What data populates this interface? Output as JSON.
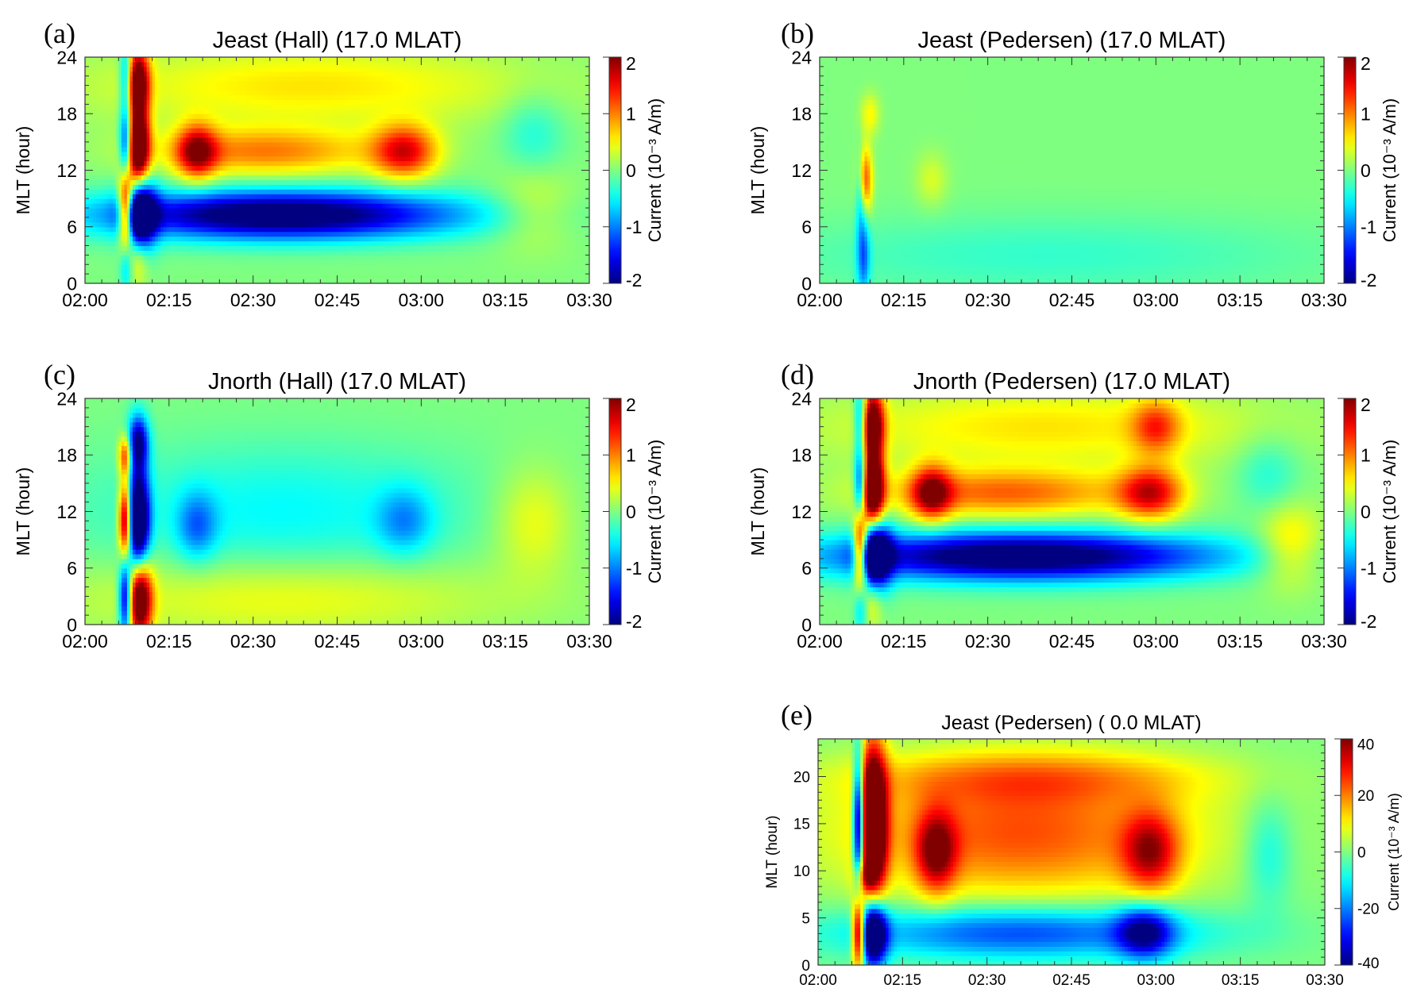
{
  "chart_data": [
    {
      "id": "a",
      "type": "heatmap",
      "panel_label": "(a)",
      "title": "Jeast (Hall) (17.0 MLAT)",
      "ylabel": "MLT (hour)",
      "colorbar_label": "Current (10⁻³ A/m)",
      "x_ticks": [
        "02:00",
        "02:15",
        "02:30",
        "02:45",
        "03:00",
        "03:15",
        "03:30"
      ],
      "xlim_minutes": [
        0,
        90
      ],
      "y_ticks": [
        0,
        6,
        12,
        18,
        24
      ],
      "ylim": [
        0,
        24
      ],
      "colorbar_ticks": [
        -2,
        -1,
        0,
        1,
        2
      ],
      "clim": [
        -2,
        2
      ],
      "features": [
        {
          "t": 7.3,
          "mlt": 8,
          "dt": 0.9,
          "dm": 3,
          "value": 3
        },
        {
          "t": 7.3,
          "mlt": 14.5,
          "dt": 0.8,
          "dm": 3,
          "value": -2
        },
        {
          "t": 7.3,
          "mlt": 22,
          "dt": 0.8,
          "dm": 2.5,
          "value": -1.2
        },
        {
          "t": 7.3,
          "mlt": 2,
          "dt": 0.8,
          "dm": 2,
          "value": -0.8
        },
        {
          "t": 9.5,
          "mlt": 14.5,
          "dt": 1.4,
          "dm": 3,
          "value": 2.8
        },
        {
          "t": 9.5,
          "mlt": 21.5,
          "dt": 1.4,
          "dm": 2.5,
          "value": 2.2
        },
        {
          "t": 9.8,
          "mlt": 7.5,
          "dt": 2,
          "dm": 2.5,
          "value": -2.6
        },
        {
          "t": 9.5,
          "mlt": 2.5,
          "dt": 1.2,
          "dm": 2,
          "value": 0.5
        },
        {
          "t": 20,
          "mlt": 14,
          "dt": 2.5,
          "dm": 2,
          "value": 1.6
        },
        {
          "t": 32,
          "mlt": 14,
          "dt": 14,
          "dm": 1.8,
          "value": 1.0
        },
        {
          "t": 57,
          "mlt": 14,
          "dt": 4,
          "dm": 2,
          "value": 1.5
        },
        {
          "t": 35,
          "mlt": 7.3,
          "dt": 22,
          "dm": 1.8,
          "value": -2.4
        },
        {
          "t": 40,
          "mlt": 21,
          "dt": 28,
          "dm": 3,
          "value": 0.6
        },
        {
          "t": 80,
          "mlt": 16,
          "dt": 4,
          "dm": 3,
          "value": -0.4
        },
        {
          "t": 80,
          "mlt": 8,
          "dt": 5,
          "dm": 3,
          "value": 0.4
        }
      ]
    },
    {
      "id": "b",
      "type": "heatmap",
      "panel_label": "(b)",
      "title": "Jeast (Pedersen) (17.0 MLAT)",
      "ylabel": "MLT (hour)",
      "colorbar_label": "Current (10⁻³ A/m)",
      "x_ticks": [
        "02:00",
        "02:15",
        "02:30",
        "02:45",
        "03:00",
        "03:15",
        "03:30"
      ],
      "xlim_minutes": [
        0,
        90
      ],
      "y_ticks": [
        0,
        6,
        12,
        18,
        24
      ],
      "ylim": [
        0,
        24
      ],
      "colorbar_ticks": [
        -2,
        -1,
        0,
        1,
        2
      ],
      "clim": [
        -2,
        2
      ],
      "features": [
        {
          "t": 8,
          "mlt": 11,
          "dt": 0.9,
          "dm": 2.5,
          "value": 1.4
        },
        {
          "t": 7.3,
          "mlt": 10,
          "dt": 0.6,
          "dm": 3,
          "value": -0.9
        },
        {
          "t": 7.8,
          "mlt": 3,
          "dt": 0.8,
          "dm": 3,
          "value": -1.0
        },
        {
          "t": 9,
          "mlt": 18,
          "dt": 1.2,
          "dm": 1.5,
          "value": 0.5
        },
        {
          "t": 40,
          "mlt": 3,
          "dt": 35,
          "dm": 3,
          "value": -0.3
        },
        {
          "t": 20,
          "mlt": 11,
          "dt": 2,
          "dm": 2,
          "value": 0.35
        }
      ]
    },
    {
      "id": "c",
      "type": "heatmap",
      "panel_label": "(c)",
      "title": "Jnorth (Hall) (17.0 MLAT)",
      "ylabel": "MLT (hour)",
      "colorbar_label": "Current (10⁻³ A/m)",
      "x_ticks": [
        "02:00",
        "02:15",
        "02:30",
        "02:45",
        "03:00",
        "03:15",
        "03:30"
      ],
      "xlim_minutes": [
        0,
        90
      ],
      "y_ticks": [
        0,
        6,
        12,
        18,
        24
      ],
      "ylim": [
        0,
        24
      ],
      "colorbar_ticks": [
        -2,
        -1,
        0,
        1,
        2
      ],
      "clim": [
        -2,
        2
      ],
      "features": [
        {
          "t": 7.2,
          "mlt": 11,
          "dt": 0.8,
          "dm": 3,
          "value": 2.6
        },
        {
          "t": 7.2,
          "mlt": 18,
          "dt": 0.8,
          "dm": 1.5,
          "value": 1.5
        },
        {
          "t": 7.2,
          "mlt": 3,
          "dt": 0.8,
          "dm": 3,
          "value": -2.2
        },
        {
          "t": 9.5,
          "mlt": 11,
          "dt": 1.4,
          "dm": 4,
          "value": -2.8
        },
        {
          "t": 9.5,
          "mlt": 19.5,
          "dt": 1.3,
          "dm": 2,
          "value": -1.8
        },
        {
          "t": 9.8,
          "mlt": 3,
          "dt": 1.5,
          "dm": 3,
          "value": 2.6
        },
        {
          "t": 20,
          "mlt": 10.5,
          "dt": 2.5,
          "dm": 2.5,
          "value": -0.8
        },
        {
          "t": 57,
          "mlt": 11,
          "dt": 3.5,
          "dm": 2.5,
          "value": -0.7
        },
        {
          "t": 35,
          "mlt": 12,
          "dt": 25,
          "dm": 5,
          "value": -0.5
        },
        {
          "t": 35,
          "mlt": 3,
          "dt": 28,
          "dm": 3,
          "value": 0.5
        },
        {
          "t": 80,
          "mlt": 11,
          "dt": 5,
          "dm": 4,
          "value": 0.5
        }
      ]
    },
    {
      "id": "d",
      "type": "heatmap",
      "panel_label": "(d)",
      "title": "Jnorth (Pedersen) (17.0 MLAT)",
      "ylabel": "MLT (hour)",
      "colorbar_label": "Current (10⁻³ A/m)",
      "x_ticks": [
        "02:00",
        "02:15",
        "02:30",
        "02:45",
        "03:00",
        "03:15",
        "03:30"
      ],
      "xlim_minutes": [
        0,
        90
      ],
      "y_ticks": [
        0,
        6,
        12,
        18,
        24
      ],
      "ylim": [
        0,
        24
      ],
      "colorbar_ticks": [
        -2,
        -1,
        0,
        1,
        2
      ],
      "clim": [
        -2,
        2
      ],
      "features": [
        {
          "t": 7.3,
          "mlt": 8,
          "dt": 0.9,
          "dm": 3,
          "value": 3
        },
        {
          "t": 7.3,
          "mlt": 14.5,
          "dt": 0.8,
          "dm": 3,
          "value": -2
        },
        {
          "t": 7.3,
          "mlt": 22,
          "dt": 0.8,
          "dm": 2.5,
          "value": -1.2
        },
        {
          "t": 7.3,
          "mlt": 2,
          "dt": 0.8,
          "dm": 2,
          "value": -0.8
        },
        {
          "t": 9.5,
          "mlt": 14.5,
          "dt": 1.4,
          "dm": 3,
          "value": 2.8
        },
        {
          "t": 9.5,
          "mlt": 21.5,
          "dt": 1.4,
          "dm": 2.5,
          "value": 2.2
        },
        {
          "t": 9.8,
          "mlt": 7.5,
          "dt": 2,
          "dm": 2.5,
          "value": -2.6
        },
        {
          "t": 9.5,
          "mlt": 2.5,
          "dt": 1.2,
          "dm": 2,
          "value": 0.5
        },
        {
          "t": 20,
          "mlt": 14,
          "dt": 2.5,
          "dm": 2,
          "value": 1.6
        },
        {
          "t": 33,
          "mlt": 14,
          "dt": 16,
          "dm": 1.8,
          "value": 1.1
        },
        {
          "t": 59,
          "mlt": 14,
          "dt": 4,
          "dm": 2,
          "value": 1.5
        },
        {
          "t": 36,
          "mlt": 7.3,
          "dt": 24,
          "dm": 1.8,
          "value": -2.4
        },
        {
          "t": 60,
          "mlt": 21,
          "dt": 3,
          "dm": 2,
          "value": 1.0
        },
        {
          "t": 40,
          "mlt": 21,
          "dt": 28,
          "dm": 3,
          "value": 0.6
        },
        {
          "t": 80,
          "mlt": 16,
          "dt": 4,
          "dm": 3,
          "value": -0.4
        },
        {
          "t": 84,
          "mlt": 8.5,
          "dt": 4,
          "dm": 3,
          "value": 0.7
        }
      ]
    },
    {
      "id": "e",
      "type": "heatmap",
      "panel_label": "(e)",
      "title": "Jeast (Pedersen) ( 0.0 MLAT)",
      "ylabel": "MLT (hour)",
      "colorbar_label": "Current (10⁻³ A/m)",
      "x_ticks": [
        "02:00",
        "02:15",
        "02:30",
        "02:45",
        "03:00",
        "03:15",
        "03:30"
      ],
      "xlim_minutes": [
        0,
        90
      ],
      "y_ticks": [
        0,
        5,
        10,
        15,
        20
      ],
      "ylim": [
        0,
        24
      ],
      "colorbar_ticks": [
        -40,
        -20,
        0,
        20,
        40
      ],
      "clim": [
        -40,
        40
      ],
      "features": [
        {
          "t": 7.2,
          "mlt": 15,
          "dt": 0.7,
          "dm": 5,
          "value": -60
        },
        {
          "t": 7.2,
          "mlt": 3.5,
          "dt": 0.8,
          "dm": 2.5,
          "value": 60
        },
        {
          "t": 9.8,
          "mlt": 15,
          "dt": 1.7,
          "dm": 6,
          "value": 60
        },
        {
          "t": 9.8,
          "mlt": 3.5,
          "dt": 1.7,
          "dm": 2.5,
          "value": -60
        },
        {
          "t": 21,
          "mlt": 12,
          "dt": 2.5,
          "dm": 3,
          "value": 30
        },
        {
          "t": 36,
          "mlt": 14,
          "dt": 22,
          "dm": 5,
          "value": 24
        },
        {
          "t": 59,
          "mlt": 12,
          "dt": 3.5,
          "dm": 3,
          "value": 28
        },
        {
          "t": 38,
          "mlt": 20,
          "dt": 22,
          "dm": 2,
          "value": 14
        },
        {
          "t": 36,
          "mlt": 3.5,
          "dt": 22,
          "dm": 2,
          "value": -26
        },
        {
          "t": 58,
          "mlt": 3.5,
          "dt": 3.5,
          "dm": 2,
          "value": -32
        },
        {
          "t": 80,
          "mlt": 12,
          "dt": 3,
          "dm": 4,
          "value": -10
        },
        {
          "t": 8,
          "mlt": 9.5,
          "dt": 1.2,
          "dm": 1.2,
          "value": 15
        }
      ]
    }
  ]
}
